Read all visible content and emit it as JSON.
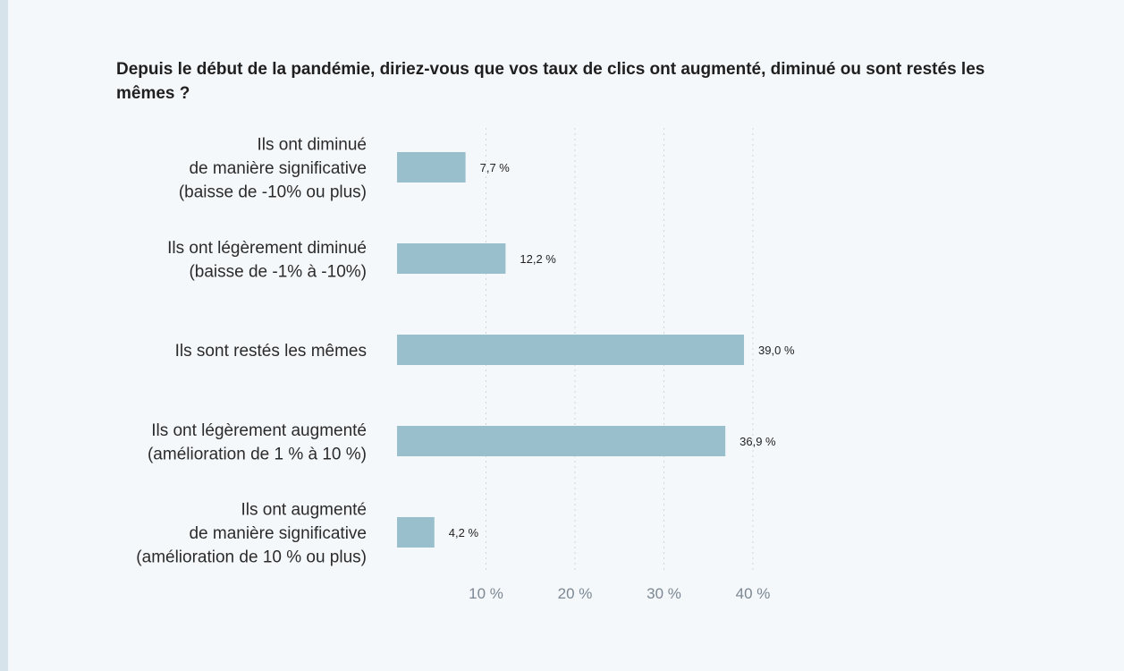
{
  "chart_data": {
    "type": "bar",
    "orientation": "horizontal",
    "title": "Depuis le début de la pandémie, diriez-vous que vos taux de clics ont augmenté, diminué ou sont restés les mêmes ?",
    "categories": [
      [
        "Ils ont diminué",
        "de manière significative",
        "(baisse de -10% ou plus)"
      ],
      [
        "Ils ont légèrement diminué",
        "(baisse de -1% à -10%)"
      ],
      [
        "Ils sont restés les mêmes"
      ],
      [
        "Ils ont légèrement augmenté",
        "(amélioration de 1 % à 10 %)"
      ],
      [
        "Ils ont augmenté",
        "de manière significative",
        "(amélioration de 10 % ou plus)"
      ]
    ],
    "values": [
      7.7,
      12.2,
      39.0,
      36.9,
      4.2
    ],
    "value_labels": [
      "7,7 %",
      "12,2 %",
      "39,0 %",
      "36,9 %",
      "4,2 %"
    ],
    "xlim": [
      0,
      40
    ],
    "xticks": [
      10,
      20,
      30,
      40
    ],
    "xtick_labels": [
      "10 %",
      "20 %",
      "30 %",
      "40 %"
    ],
    "grid": true,
    "bar_color": "#99bfcc"
  }
}
